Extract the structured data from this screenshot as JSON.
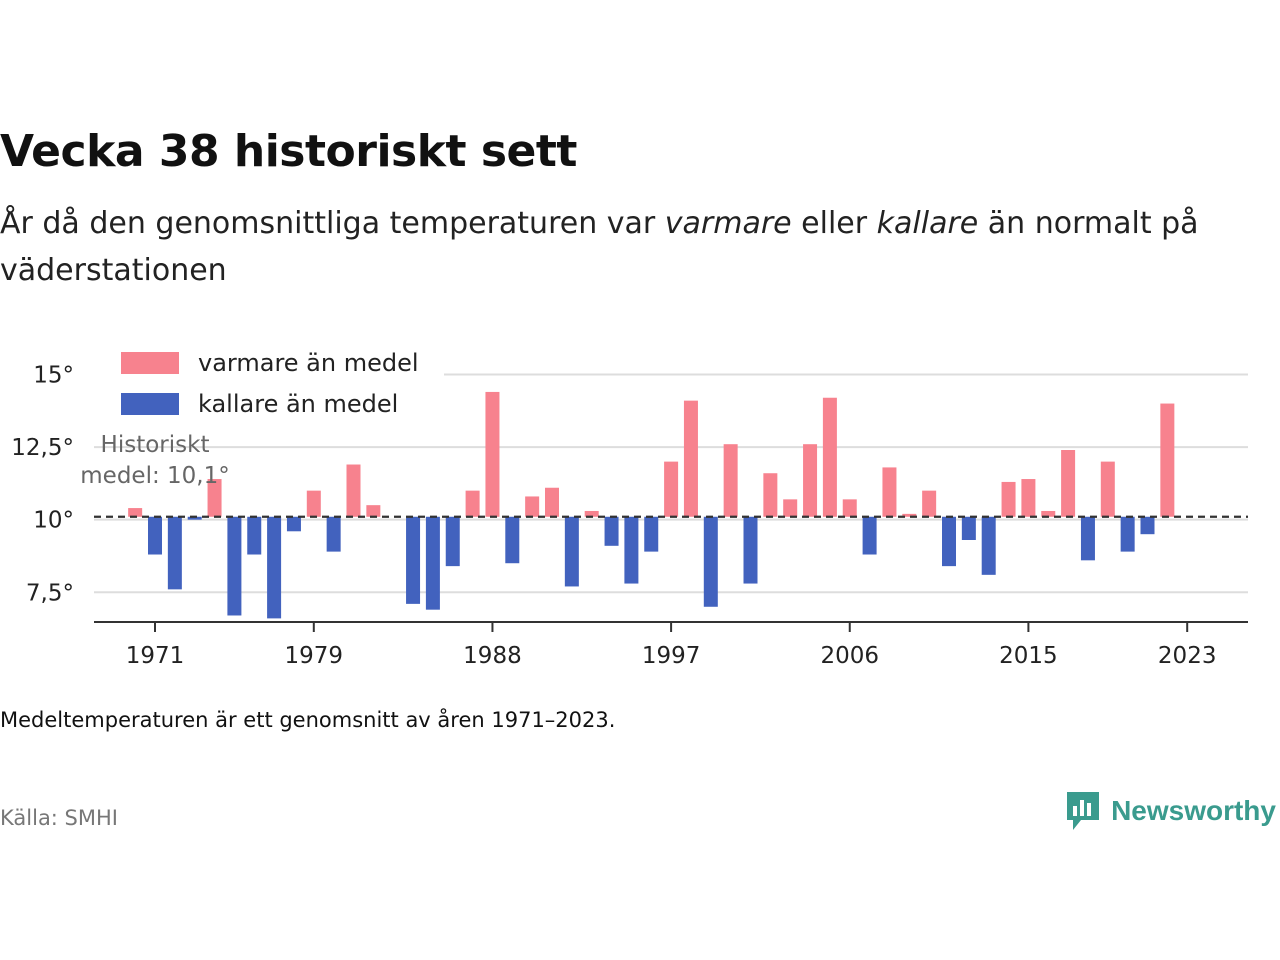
{
  "header": {
    "title": "Vecka 38 historiskt sett",
    "subtitle_part1": "År då den genomsnittliga temperaturen var ",
    "subtitle_warm": "varmare",
    "subtitle_part2": " eller ",
    "subtitle_cold": "kallare",
    "subtitle_part3": " än normalt på väderstationen"
  },
  "footer": {
    "note": "Medeltemperaturen är ett genomsnitt av åren 1971–2023.",
    "source": "Källa: SMHI",
    "brand": "Newsworthy",
    "brand_icon": "bar-chart-logo-icon"
  },
  "colors": {
    "warm": "#f7828e",
    "cold": "#4262be",
    "grid": "#dddddd",
    "axis": "#333333",
    "brand": "#3a9b8e"
  },
  "chart_data": {
    "type": "bar",
    "baseline": 10.1,
    "baseline_label_line1": "Historiskt",
    "baseline_label_line2": "medel: 10,1°",
    "ylim": [
      6.2,
      15.5
    ],
    "yticks": [
      7.5,
      10,
      12.5,
      15
    ],
    "ytick_labels": [
      "7,5°",
      "10°",
      "12,5°",
      "15°"
    ],
    "xticks": [
      1971,
      1979,
      1988,
      1997,
      2006,
      2015,
      2023
    ],
    "xtick_labels": [
      "1971",
      "1979",
      "1988",
      "1997",
      "2006",
      "2015",
      "2023"
    ],
    "legend": [
      {
        "name": "varmare än medel",
        "color": "#f7828e"
      },
      {
        "name": "kallare än medel",
        "color": "#4262be"
      }
    ],
    "legend_position": "top-left",
    "years": [
      1970,
      1971,
      1972,
      1973,
      1974,
      1975,
      1976,
      1977,
      1978,
      1979,
      1980,
      1981,
      1982,
      1983,
      1984,
      1985,
      1986,
      1987,
      1988,
      1989,
      1990,
      1991,
      1992,
      1993,
      1994,
      1995,
      1996,
      1997,
      1998,
      1999,
      2000,
      2001,
      2002,
      2003,
      2004,
      2005,
      2006,
      2007,
      2008,
      2009,
      2010,
      2011,
      2012,
      2013,
      2014,
      2015,
      2016,
      2017,
      2018,
      2019,
      2020,
      2021,
      2022,
      2023
    ],
    "values": [
      10.4,
      8.8,
      7.6,
      10.0,
      11.4,
      6.7,
      8.8,
      6.6,
      9.6,
      11.0,
      8.9,
      11.9,
      10.5,
      null,
      7.1,
      6.9,
      8.4,
      11.0,
      14.4,
      8.5,
      10.8,
      11.1,
      7.7,
      10.3,
      9.1,
      7.8,
      8.9,
      12.0,
      14.1,
      7.0,
      12.6,
      7.8,
      11.6,
      10.7,
      12.6,
      14.2,
      10.7,
      8.8,
      11.8,
      10.2,
      11.0,
      8.4,
      9.3,
      8.1,
      11.3,
      11.4,
      10.3,
      12.4,
      8.6,
      12.0,
      8.9,
      9.5,
      14.0,
      null
    ]
  }
}
